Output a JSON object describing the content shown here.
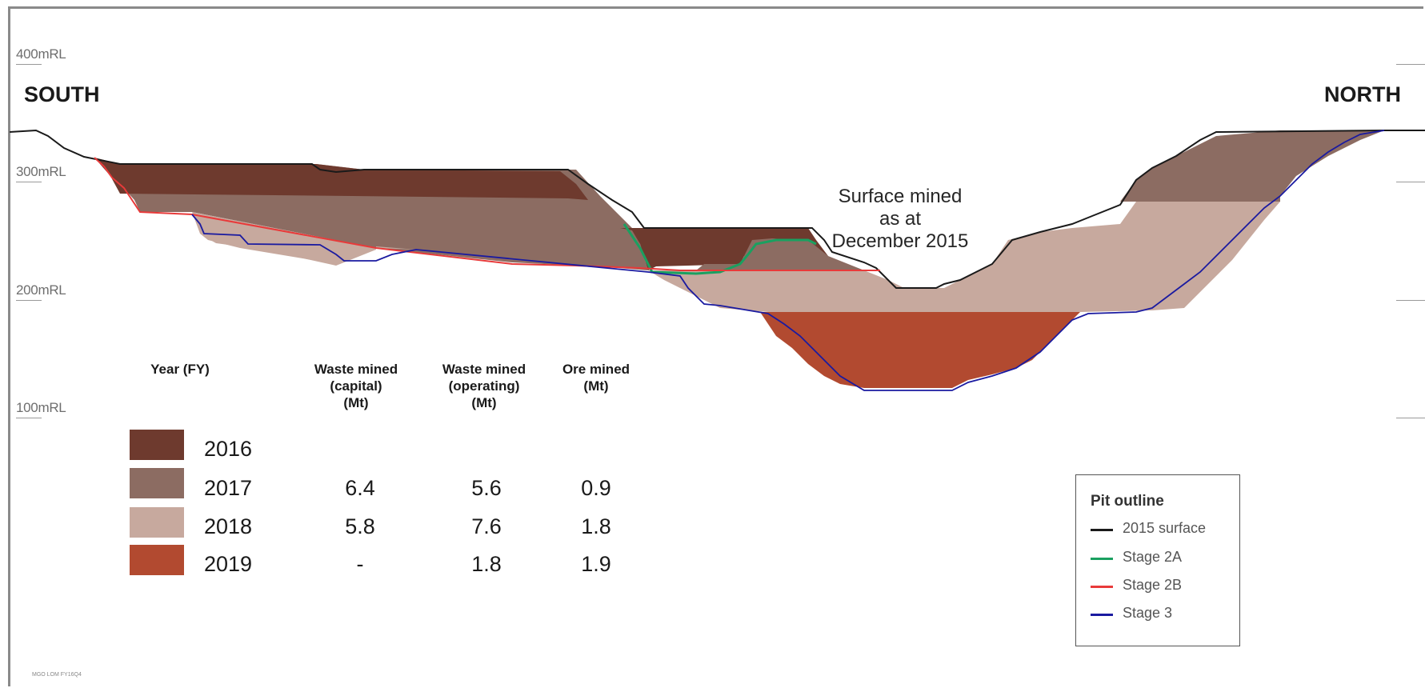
{
  "levels": [
    {
      "label": "400mRL",
      "value": 400
    },
    {
      "label": "300mRL",
      "value": 300
    },
    {
      "label": "200mRL",
      "value": 200
    },
    {
      "label": "100mRL",
      "value": 100
    }
  ],
  "directions": {
    "left": "SOUTH",
    "right": "NORTH"
  },
  "annotation": {
    "line1": "Surface mined",
    "line2": "as at",
    "line3": "December 2015"
  },
  "table": {
    "headers": {
      "year": "Year (FY)",
      "capital": [
        "Waste mined",
        "(capital)",
        "(Mt)"
      ],
      "operating": [
        "Waste mined",
        "(operating)",
        "(Mt)"
      ],
      "ore": [
        "Ore mined",
        "(Mt)"
      ]
    },
    "rows": [
      {
        "year": "2016",
        "color": "#6e3a2e",
        "capital": "",
        "operating": "",
        "ore": ""
      },
      {
        "year": "2017",
        "color": "#8c6c62",
        "capital": "6.4",
        "operating": "5.6",
        "ore": "0.9"
      },
      {
        "year": "2018",
        "color": "#c7a99e",
        "capital": "5.8",
        "operating": "7.6",
        "ore": "1.8"
      },
      {
        "year": "2019",
        "color": "#b24a30",
        "capital": "-",
        "operating": "1.8",
        "ore": "1.9"
      }
    ]
  },
  "legend": {
    "title": "Pit outline",
    "items": [
      {
        "label": "2015 surface",
        "color": "#1a1a1a"
      },
      {
        "label": "Stage 2A",
        "color": "#1aa060"
      },
      {
        "label": "Stage 2B",
        "color": "#e83a3a"
      },
      {
        "label": "Stage 3",
        "color": "#1a1aa0"
      }
    ]
  },
  "footer": "MGO LOM FY16Q4"
}
